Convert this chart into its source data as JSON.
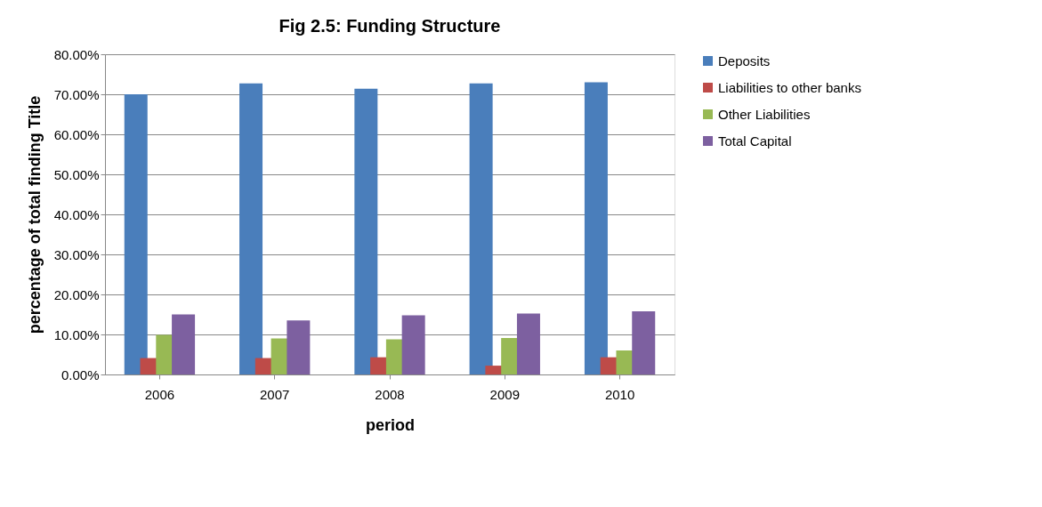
{
  "chart_data": {
    "type": "bar",
    "title": "Fig 2.5: Funding Structure",
    "xlabel": "period",
    "ylabel": "percentage of total finding Title",
    "categories": [
      "2006",
      "2007",
      "2008",
      "2009",
      "2010"
    ],
    "series": [
      {
        "name": "Deposits",
        "color": "#4a7ebb",
        "values": [
          70.0,
          72.7,
          71.4,
          72.7,
          73.0
        ]
      },
      {
        "name": "Liabilities to other banks",
        "color": "#be4b48",
        "values": [
          4.1,
          4.1,
          4.3,
          2.2,
          4.3
        ]
      },
      {
        "name": "Other Liabilities",
        "color": "#98b954",
        "values": [
          9.9,
          9.0,
          8.8,
          9.1,
          6.0
        ]
      },
      {
        "name": "Total Capital",
        "color": "#7d60a0",
        "values": [
          15.0,
          13.5,
          14.8,
          15.2,
          15.8
        ]
      }
    ],
    "ylim": [
      0,
      80
    ],
    "yticks": [
      {
        "value": 0,
        "label": "0.00%"
      },
      {
        "value": 10,
        "label": "10.00%"
      },
      {
        "value": 20,
        "label": "20.00%"
      },
      {
        "value": 30,
        "label": "30.00%"
      },
      {
        "value": 40,
        "label": "40.00%"
      },
      {
        "value": 50,
        "label": "50.00%"
      },
      {
        "value": 60,
        "label": "60.00%"
      },
      {
        "value": 70,
        "label": "70.00%"
      },
      {
        "value": 80,
        "label": "80.00%"
      }
    ],
    "grid": "y",
    "legend": "right"
  }
}
